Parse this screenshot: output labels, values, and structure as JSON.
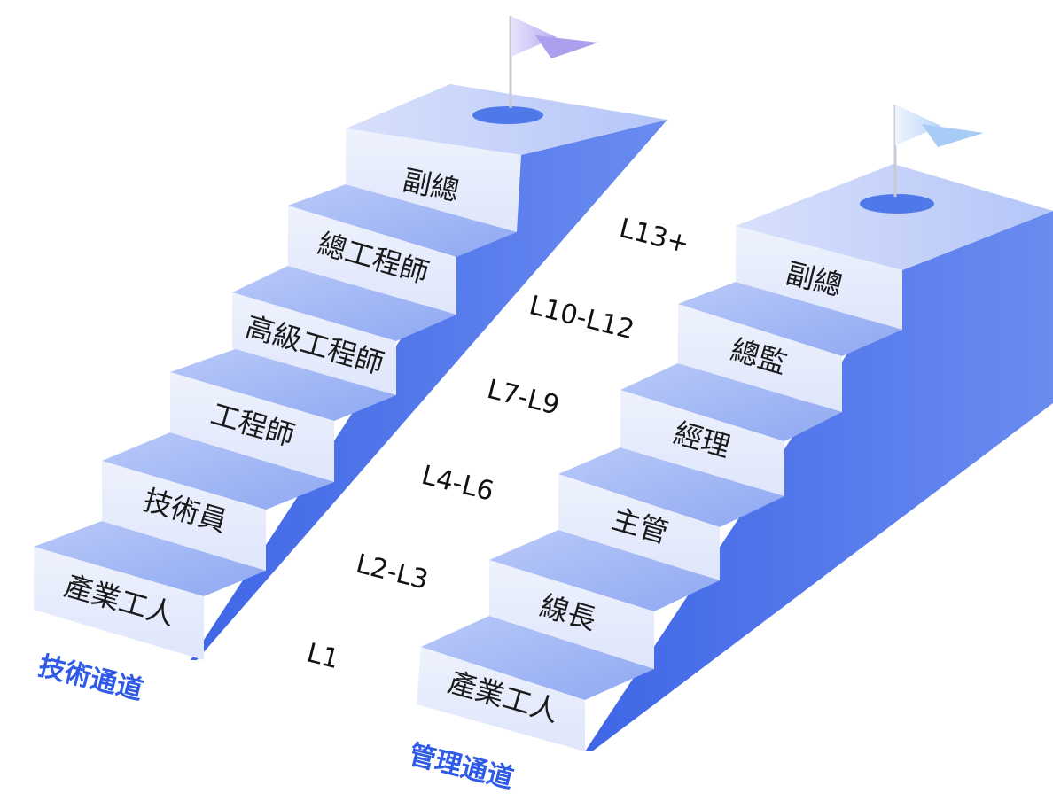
{
  "colors": {
    "side": "#4f73e8",
    "tread_top": "#c8d4fa",
    "tread_front": "#9fb5f4",
    "riser": "#e4eafc",
    "flag_left": "#c9c3f5",
    "flag_right": "#cfe2fb",
    "hole": "#4f78e8",
    "track_title": "#2f5be6"
  },
  "left_track": {
    "title": "技術通道",
    "steps": [
      "產業工人",
      "技術員",
      "工程師",
      "高級工程師",
      "總工程師",
      "副總"
    ]
  },
  "right_track": {
    "title": "管理通道",
    "steps": [
      "產業工人",
      "線長",
      "主管",
      "經理",
      "總監",
      "副總"
    ]
  },
  "levels": [
    "L1",
    "L2-L3",
    "L4-L6",
    "L7-L9",
    "L10-L12",
    "L13+"
  ]
}
